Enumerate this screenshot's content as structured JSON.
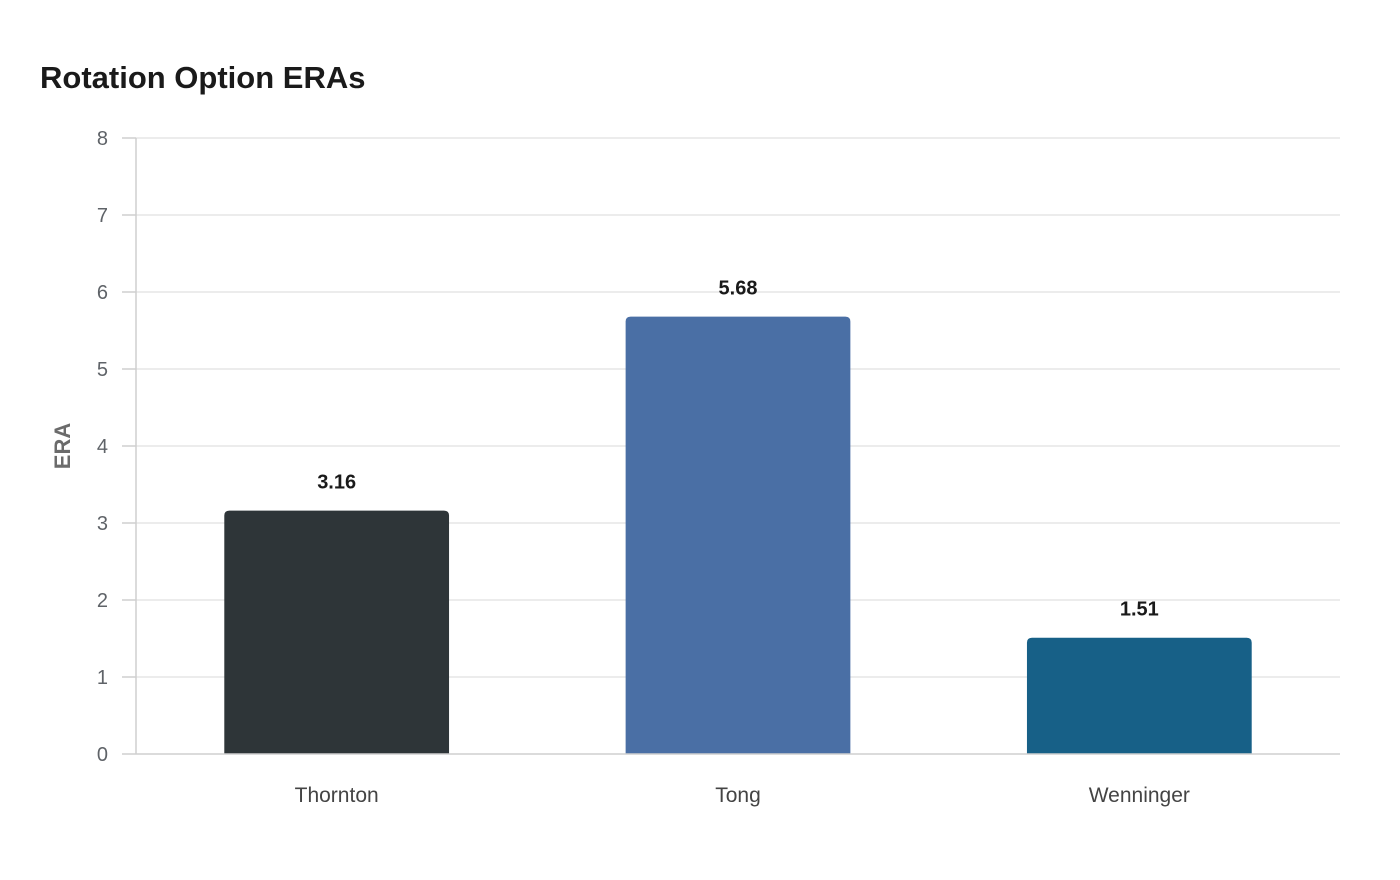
{
  "chart_data": {
    "type": "bar",
    "title": "Rotation Option ERAs",
    "xlabel": "",
    "ylabel": "ERA",
    "categories": [
      "Thornton",
      "Tong",
      "Wenninger"
    ],
    "values": [
      3.16,
      5.68,
      1.51
    ],
    "value_labels": [
      "3.16",
      "5.68",
      "1.51"
    ],
    "colors": [
      "#2e3538",
      "#4a6fa5",
      "#176087"
    ],
    "ylim": [
      0,
      8
    ],
    "yticks": [
      0,
      1,
      2,
      3,
      4,
      5,
      6,
      7,
      8
    ],
    "grid": true,
    "legend": "none"
  }
}
